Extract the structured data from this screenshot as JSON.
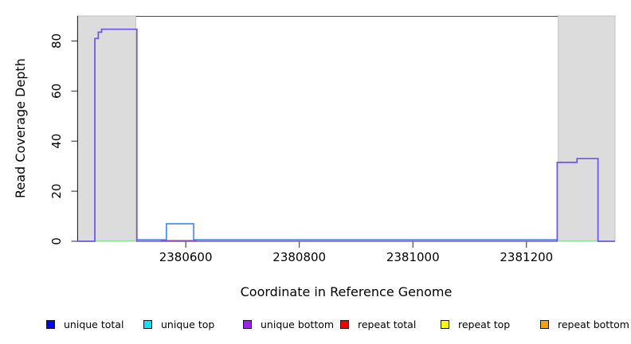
{
  "chart_data": {
    "type": "line",
    "title": "",
    "xlabel": "Coordinate in Reference Genome",
    "ylabel": "Read Coverage Depth",
    "xlim": [
      2380409,
      2381356
    ],
    "ylim": [
      0,
      90
    ],
    "x_ticks": [
      2380600,
      2380800,
      2381000,
      2381200
    ],
    "x_tick_labels": [
      "2380600",
      "2380800",
      "2381000",
      "2381200"
    ],
    "y_ticks": [
      0,
      20,
      40,
      60,
      80
    ],
    "y_tick_labels": [
      "0",
      "20",
      "40",
      "60",
      "80"
    ],
    "grid": false,
    "legend_position": "bottom",
    "box_top_color": "#4a4a4a",
    "axis_color": "#2a2a2a",
    "shaded_regions": [
      {
        "name": "repeat-region-left",
        "x0": 2380409,
        "x1": 2380512,
        "fill": "#dcdcdc",
        "edge": "#c2c2c2"
      },
      {
        "name": "repeat-region-right",
        "x0": 2381256,
        "x1": 2381356,
        "fill": "#dcdcdc",
        "edge": "#c2c2c2"
      }
    ],
    "series": [
      {
        "name": "top-strand-baseline",
        "color": "#8fe08f",
        "width": 1.4,
        "segments": [
          [
            [
              2380440,
              0.12
            ],
            [
              2380514,
              0.12
            ]
          ],
          [
            [
              2381256,
              0.12
            ],
            [
              2381326,
              0.12
            ]
          ]
        ]
      },
      {
        "name": "unique-total",
        "color": "#2f7df6",
        "width": 1.5,
        "segments": [
          [
            [
              2380409,
              0
            ],
            [
              2380440,
              0
            ],
            [
              2380440,
              81
            ],
            [
              2380446,
              81
            ],
            [
              2380446,
              83.5
            ],
            [
              2380452,
              83.5
            ],
            [
              2380452,
              84.7
            ],
            [
              2380514,
              84.7
            ],
            [
              2380514,
              0.6
            ],
            [
              2380566,
              0.6
            ],
            [
              2380566,
              7
            ],
            [
              2380614,
              7
            ],
            [
              2380614,
              0.6
            ],
            [
              2381254,
              0.6
            ],
            [
              2381254,
              31.5
            ],
            [
              2381289,
              31.5
            ],
            [
              2381289,
              33
            ],
            [
              2381326,
              33
            ],
            [
              2381326,
              0
            ],
            [
              2381356,
              0
            ]
          ]
        ]
      },
      {
        "name": "repeat-total",
        "color": "#f2433c",
        "width": 1.4,
        "segments": [
          [
            [
              2380556,
              0.3
            ],
            [
              2380619,
              0.3
            ]
          ]
        ]
      },
      {
        "name": "unique-bottom",
        "color": "#7352e8",
        "width": 1.6,
        "segments": [
          [
            [
              2380409,
              0
            ],
            [
              2380440,
              0
            ],
            [
              2380440,
              81
            ],
            [
              2380446,
              81
            ],
            [
              2380446,
              83.5
            ],
            [
              2380452,
              83.5
            ],
            [
              2380452,
              84.7
            ],
            [
              2380514,
              84.7
            ],
            [
              2380514,
              0
            ],
            [
              2381254,
              0
            ],
            [
              2381254,
              31.5
            ],
            [
              2381289,
              31.5
            ],
            [
              2381289,
              33
            ],
            [
              2381326,
              33
            ],
            [
              2381326,
              0
            ],
            [
              2381356,
              0
            ]
          ]
        ]
      }
    ],
    "legend_items": [
      {
        "label": "unique total",
        "color": "#0000f0"
      },
      {
        "label": "unique top",
        "color": "#00e6f0"
      },
      {
        "label": "unique bottom",
        "color": "#a020f0"
      },
      {
        "label": "repeat total",
        "color": "#ee0000"
      },
      {
        "label": "repeat top",
        "color": "#fbfb00"
      },
      {
        "label": "repeat bottom",
        "color": "#f5a300"
      }
    ]
  }
}
